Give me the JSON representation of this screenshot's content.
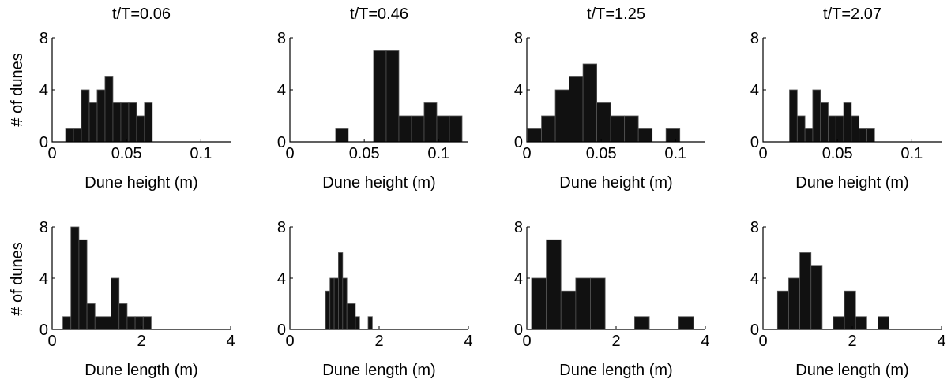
{
  "figure": {
    "ylabel_top": "# of dunes",
    "ylabel_bottom": "# of dunes",
    "bar_color": "#111111",
    "bar_edge_color": "#555555"
  },
  "chart_data": [
    {
      "type": "bar",
      "title": "t/T=0.06",
      "xlabel": "Dune height (m)",
      "ylabel": "# of dunes",
      "xlim": [
        0,
        0.12
      ],
      "ylim": [
        0,
        8
      ],
      "xticks": [
        0,
        0.05,
        0.1
      ],
      "xtick_labels": [
        "0",
        "0.05",
        "0.1"
      ],
      "yticks": [
        0,
        4,
        8
      ],
      "ytick_labels": [
        "0",
        "4",
        "8"
      ],
      "bin_width": 0.0053,
      "bin_centers": [
        0.0117,
        0.017,
        0.0223,
        0.0276,
        0.0329,
        0.0382,
        0.0435,
        0.0488,
        0.0541,
        0.0594,
        0.0647
      ],
      "values": [
        1,
        1,
        4,
        3,
        4,
        5,
        3,
        3,
        3,
        2,
        3
      ]
    },
    {
      "type": "bar",
      "title": "t/T=0.46",
      "xlabel": "Dune height (m)",
      "ylabel": "",
      "xlim": [
        0,
        0.12
      ],
      "ylim": [
        0,
        8
      ],
      "xticks": [
        0,
        0.05,
        0.1
      ],
      "xtick_labels": [
        "0",
        "0.05",
        "0.1"
      ],
      "yticks": [
        0,
        4,
        8
      ],
      "ytick_labels": [
        "0",
        "4",
        "8"
      ],
      "bin_width": 0.0085,
      "bin_centers": [
        0.035,
        0.0435,
        0.052,
        0.0605,
        0.069,
        0.0775,
        0.086,
        0.0945,
        0.103,
        0.1115
      ],
      "values": [
        1,
        0,
        0,
        7,
        7,
        2,
        2,
        3,
        2,
        2
      ]
    },
    {
      "type": "bar",
      "title": "t/T=1.25",
      "xlabel": "Dune height (m)",
      "ylabel": "",
      "xlim": [
        0,
        0.12
      ],
      "ylim": [
        0,
        8
      ],
      "xticks": [
        0,
        0.05,
        0.1
      ],
      "xtick_labels": [
        "0",
        "0.05",
        "0.1"
      ],
      "yticks": [
        0,
        4,
        8
      ],
      "ytick_labels": [
        "0",
        "4",
        "8"
      ],
      "bin_width": 0.0093,
      "bin_centers": [
        0.0052,
        0.0145,
        0.0238,
        0.0331,
        0.0424,
        0.0517,
        0.061,
        0.0703,
        0.0796,
        0.0889,
        0.0982
      ],
      "values": [
        1,
        2,
        4,
        5,
        6,
        3,
        2,
        2,
        1,
        0,
        1
      ]
    },
    {
      "type": "bar",
      "title": "t/T=2.07",
      "xlabel": "Dune height (m)",
      "ylabel": "",
      "xlim": [
        0,
        0.12
      ],
      "ylim": [
        0,
        8
      ],
      "xticks": [
        0,
        0.05,
        0.1
      ],
      "xtick_labels": [
        "0",
        "0.05",
        "0.1"
      ],
      "yticks": [
        0,
        4,
        8
      ],
      "ytick_labels": [
        "0",
        "4",
        "8"
      ],
      "bin_width": 0.0052,
      "bin_centers": [
        0.0204,
        0.0256,
        0.0308,
        0.036,
        0.0412,
        0.0464,
        0.0516,
        0.0568,
        0.062,
        0.0672,
        0.0724
      ],
      "values": [
        4,
        2,
        1,
        4,
        3,
        2,
        2,
        3,
        2,
        1,
        1
      ]
    },
    {
      "type": "bar",
      "title": "",
      "xlabel": "Dune length (m)",
      "ylabel": "# of dunes",
      "xlim": [
        0,
        4
      ],
      "ylim": [
        0,
        8
      ],
      "xticks": [
        0,
        2,
        4
      ],
      "xtick_labels": [
        "0",
        "2",
        "4"
      ],
      "yticks": [
        0,
        4,
        8
      ],
      "ytick_labels": [
        "0",
        "4",
        "8"
      ],
      "bin_width": 0.18,
      "bin_centers": [
        0.33,
        0.51,
        0.69,
        0.87,
        1.05,
        1.23,
        1.41,
        1.59,
        1.77,
        1.95,
        2.13
      ],
      "values": [
        1,
        8,
        7,
        2,
        1,
        1,
        4,
        2,
        1,
        1,
        1
      ]
    },
    {
      "type": "bar",
      "title": "",
      "xlabel": "Dune length (m)",
      "ylabel": "",
      "xlim": [
        0,
        4
      ],
      "ylim": [
        0,
        8
      ],
      "xticks": [
        0,
        2,
        4
      ],
      "xtick_labels": [
        "0",
        "2",
        "4"
      ],
      "yticks": [
        0,
        4,
        8
      ],
      "ytick_labels": [
        "0",
        "4",
        "8"
      ],
      "bin_width": 0.095,
      "bin_centers": [
        0.85,
        0.945,
        1.04,
        1.135,
        1.23,
        1.325,
        1.42,
        1.515,
        1.61,
        1.705,
        1.8
      ],
      "values": [
        3,
        4,
        4,
        6,
        4,
        2,
        2,
        1,
        0,
        0,
        1
      ]
    },
    {
      "type": "bar",
      "title": "",
      "xlabel": "Dune length (m)",
      "ylabel": "",
      "xlim": [
        0,
        4
      ],
      "ylim": [
        0,
        8
      ],
      "xticks": [
        0,
        2,
        4
      ],
      "xtick_labels": [
        "0",
        "2",
        "4"
      ],
      "yticks": [
        0,
        4,
        8
      ],
      "ytick_labels": [
        "0",
        "4",
        "8"
      ],
      "bin_width": 0.33,
      "bin_centers": [
        0.27,
        0.6,
        0.93,
        1.26,
        1.59,
        1.92,
        2.25,
        2.58,
        2.91,
        3.24,
        3.57
      ],
      "values": [
        4,
        7,
        3,
        4,
        4,
        0,
        0,
        1,
        0,
        0,
        1
      ]
    },
    {
      "type": "bar",
      "title": "",
      "xlabel": "Dune length (m)",
      "ylabel": "",
      "xlim": [
        0,
        4
      ],
      "ylim": [
        0,
        8
      ],
      "xticks": [
        0,
        2,
        4
      ],
      "xtick_labels": [
        "0",
        "2",
        "4"
      ],
      "yticks": [
        0,
        4,
        8
      ],
      "ytick_labels": [
        "0",
        "4",
        "8"
      ],
      "bin_width": 0.25,
      "bin_centers": [
        0.45,
        0.7,
        0.95,
        1.2,
        1.45,
        1.7,
        1.95,
        2.2,
        2.45,
        2.7
      ],
      "values": [
        3,
        4,
        6,
        5,
        0,
        1,
        3,
        1,
        0,
        1
      ]
    }
  ]
}
